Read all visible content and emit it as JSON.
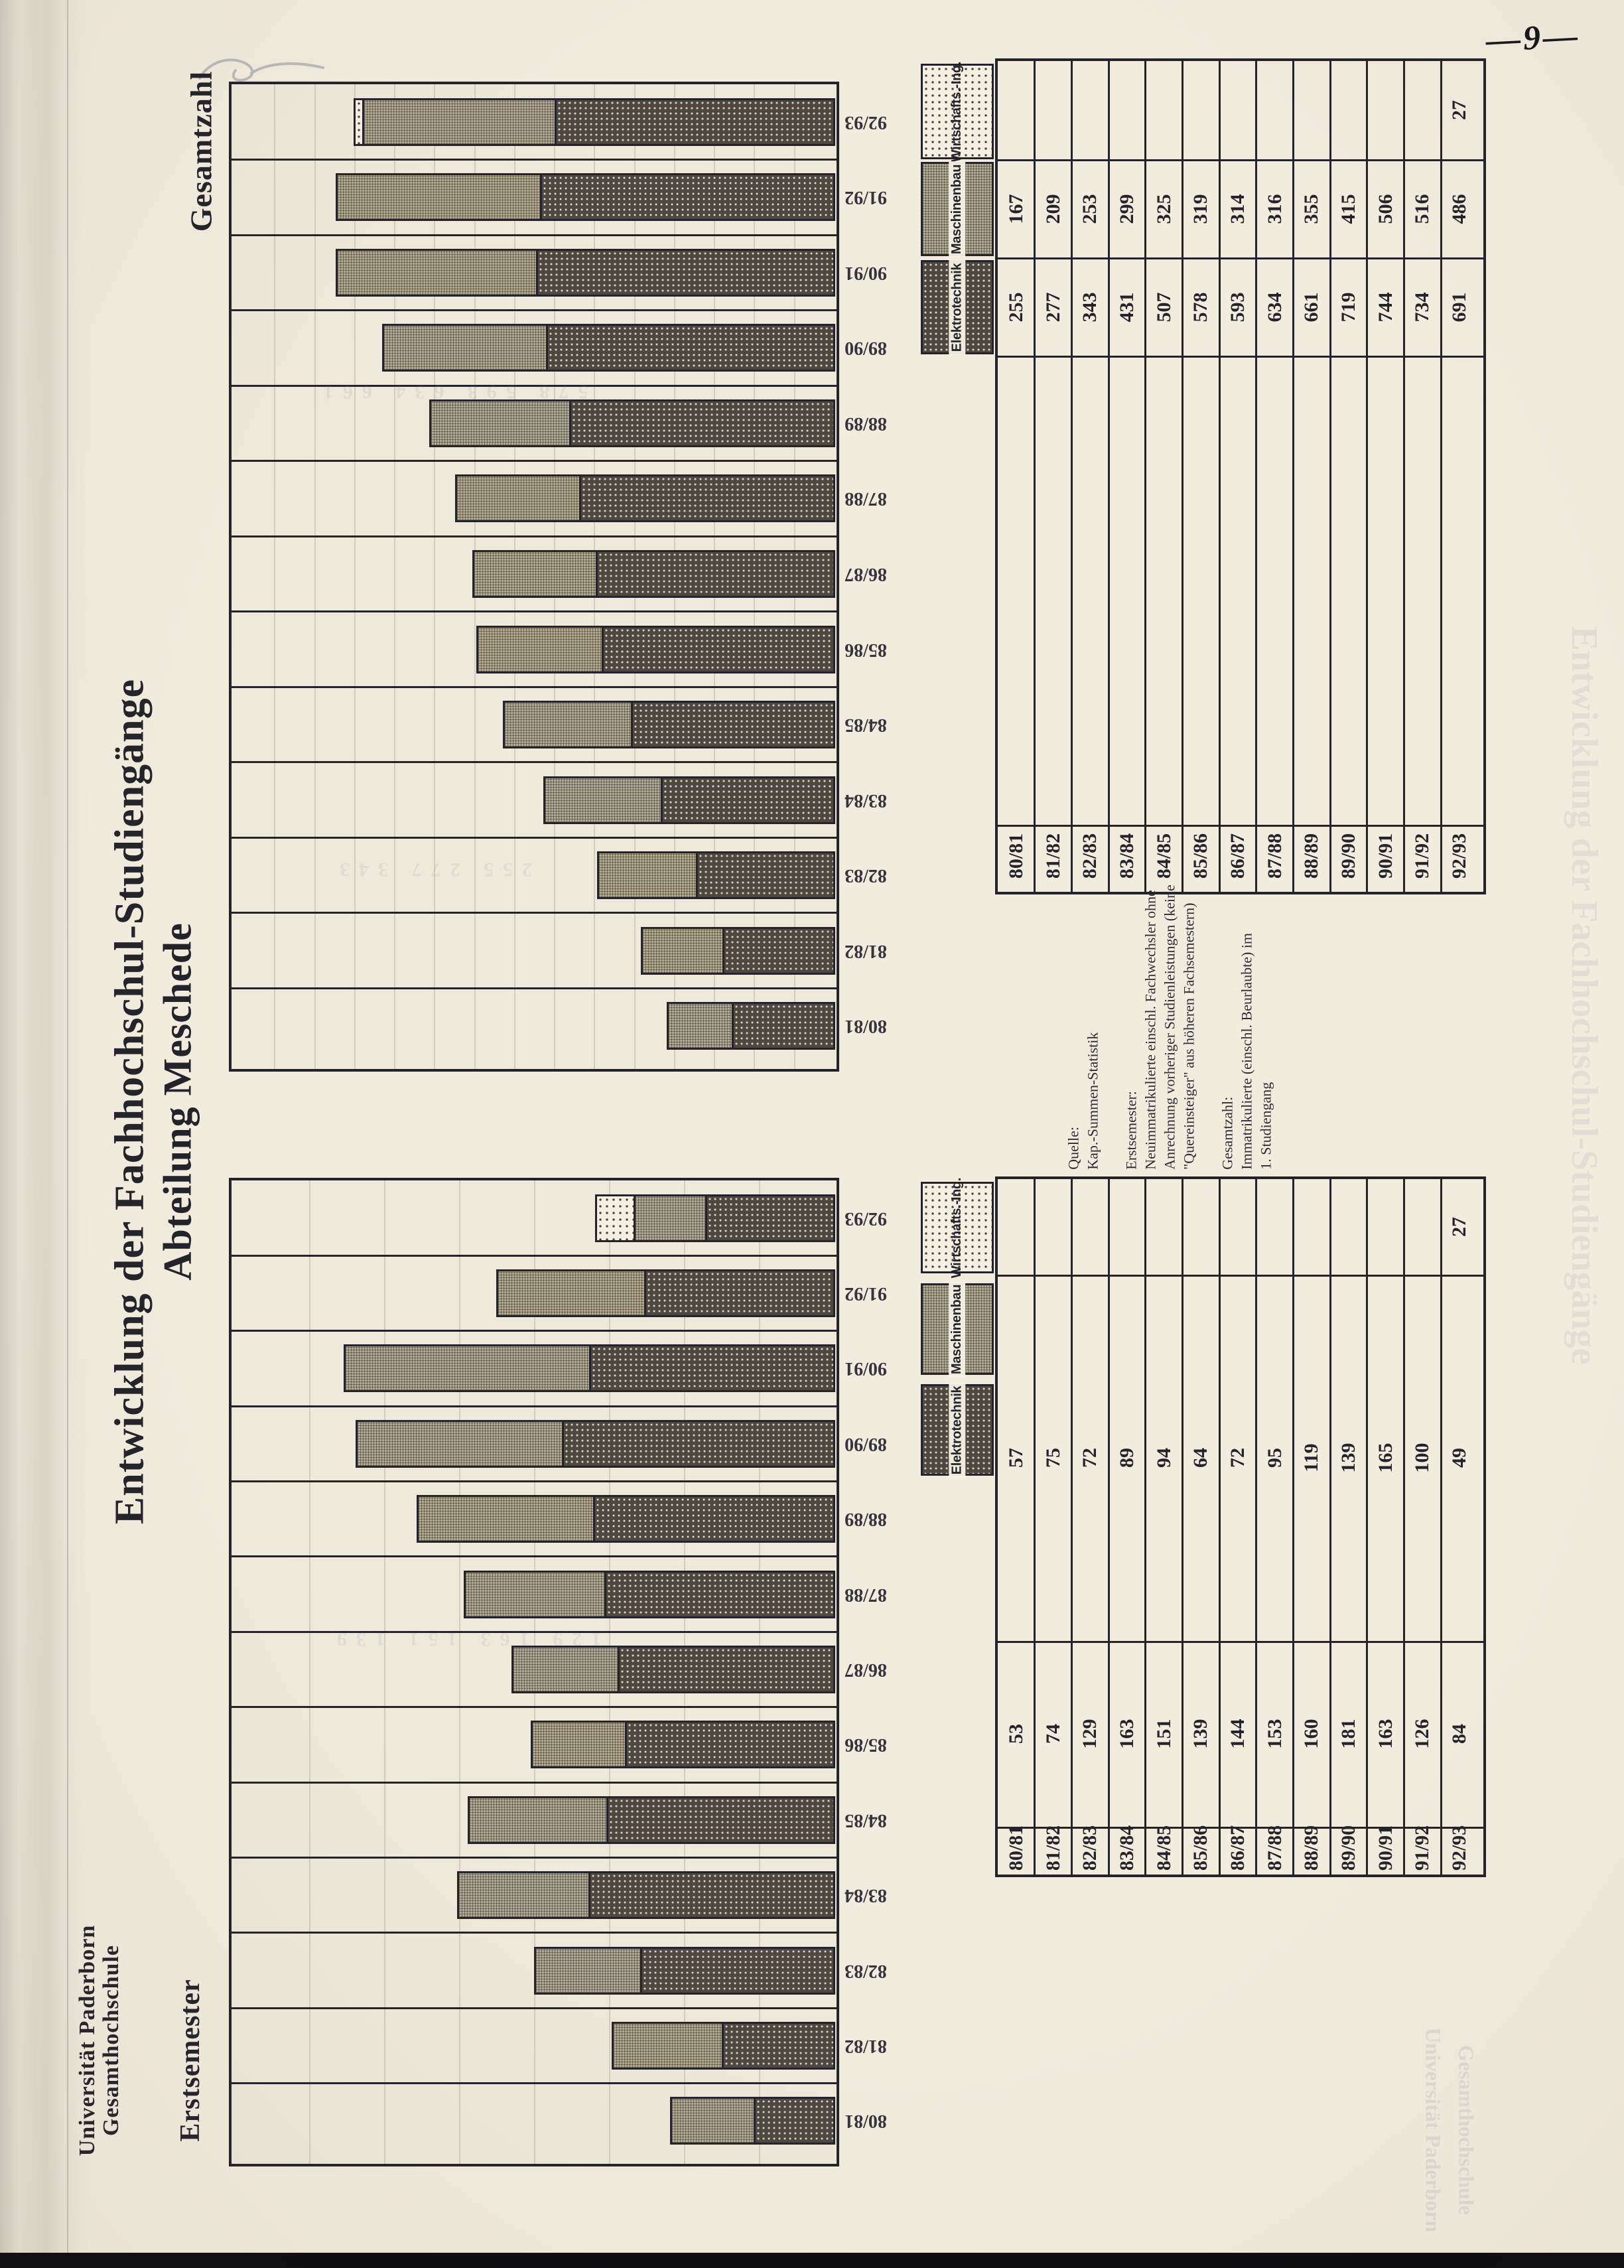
{
  "page": {
    "number_label": "—9—",
    "paper_color": "#f2ecdf",
    "ink_color": "#23232b"
  },
  "header": {
    "line1": "Universität Paderborn",
    "line2": "Gesamthochschule"
  },
  "title": {
    "line1": "Entwicklung der Fachhochschul-Studiengänge",
    "line2": "Abteilung Meschede"
  },
  "years": [
    "80/81",
    "81/82",
    "82/83",
    "83/84",
    "84/85",
    "85/86",
    "86/87",
    "87/88",
    "88/89",
    "89/90",
    "90/91",
    "91/92",
    "92/93"
  ],
  "legend": {
    "elektrotechnik": "Elektrotechnik",
    "maschinenbau": "Maschinenbau",
    "wirtschaftsing": "Wirtschafts.-Ing."
  },
  "charts": {
    "erstsemester": {
      "label": "Erstsemester"
    },
    "gesamtzahl": {
      "label": "Gesamtzahl"
    }
  },
  "notes": {
    "lines": [
      "Quelle:",
      "Kap.-Summen-Statistik",
      "",
      "Erstsemester:",
      "Neuimmatrikulierte einschl. Fachwechsler ohne",
      "Anrechnung vorheriger Studienleistungen (keine",
      "\"Quereinsteiger\" aus höheren Fachsemestern)",
      "",
      "Gesamtzahl:",
      "Immatrikulierte (einschl. Beurlaubte) im",
      "1. Studiengang"
    ]
  },
  "chart_data": [
    {
      "type": "bar",
      "stacked": true,
      "orientation": "horizontal (page scanned rotated 90° CCW; bars grow leftward from right axis)",
      "title": "Erstsemester",
      "categories": [
        "80/81",
        "81/82",
        "82/83",
        "83/84",
        "84/85",
        "85/86",
        "86/87",
        "87/88",
        "88/89",
        "89/90",
        "90/91",
        "91/92",
        "92/93"
      ],
      "series": [
        {
          "name": "Elektrotechnik",
          "values": [
            53,
            74,
            129,
            163,
            151,
            139,
            144,
            153,
            160,
            181,
            163,
            126,
            84
          ]
        },
        {
          "name": "Maschinenbau",
          "values": [
            57,
            75,
            72,
            89,
            94,
            64,
            72,
            95,
            119,
            139,
            165,
            100,
            49
          ]
        },
        {
          "name": "Wirtschafts.-Ing.",
          "values": [
            0,
            0,
            0,
            0,
            0,
            0,
            0,
            0,
            0,
            0,
            0,
            0,
            27
          ]
        }
      ],
      "xlim": [
        0,
        400
      ],
      "grid_step": 50,
      "legend_position": "boxes beside data table"
    },
    {
      "type": "bar",
      "stacked": true,
      "orientation": "horizontal (page scanned rotated 90° CCW; bars grow leftward from right axis)",
      "title": "Gesamtzahl",
      "categories": [
        "80/81",
        "81/82",
        "82/83",
        "83/84",
        "84/85",
        "85/86",
        "86/87",
        "87/88",
        "88/89",
        "89/90",
        "90/91",
        "91/92",
        "92/93"
      ],
      "series": [
        {
          "name": "Elektrotechnik",
          "values": [
            255,
            277,
            343,
            431,
            507,
            578,
            593,
            634,
            661,
            719,
            744,
            734,
            691
          ]
        },
        {
          "name": "Maschinenbau",
          "values": [
            167,
            209,
            253,
            299,
            325,
            319,
            314,
            316,
            355,
            415,
            506,
            516,
            486
          ]
        },
        {
          "name": "Wirtschafts.-Ing.",
          "values": [
            0,
            0,
            0,
            0,
            0,
            0,
            0,
            0,
            0,
            0,
            0,
            0,
            27
          ]
        }
      ],
      "xlim": [
        0,
        1500
      ],
      "grid_step": 100,
      "legend_position": "boxes beside data table"
    }
  ],
  "ghosts": {
    "title": "Entwicklung der Fachhochschul-Studiengänge",
    "header1": "Universität Paderborn",
    "header2": "Gesamthochschule",
    "numbers1": "578  593  634  661",
    "numbers2": "255  277  343",
    "numbers3": "129  163  151  139"
  }
}
